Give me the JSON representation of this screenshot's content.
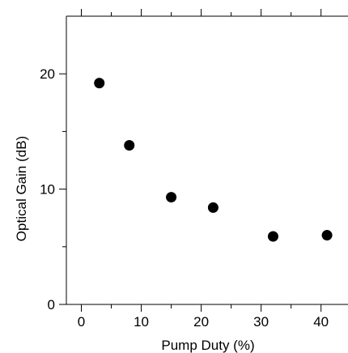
{
  "chart_data": {
    "type": "scatter",
    "title": "",
    "xlabel": "Pump Duty (%)",
    "ylabel": "Optical Gain (dB)",
    "xlim": [
      -2.5,
      44.5
    ],
    "ylim": [
      0,
      25
    ],
    "xticks_major": [
      0,
      10,
      20,
      30,
      40
    ],
    "xticks_major_labels": [
      "0",
      "10",
      "20",
      "30",
      "40"
    ],
    "xticks_minor": [
      5,
      15,
      25,
      35
    ],
    "yticks_major": [
      0,
      10,
      20
    ],
    "yticks_major_labels": [
      "0",
      "10",
      "20"
    ],
    "yticks_minor": [
      5,
      15
    ],
    "top_ticks": [
      0,
      5,
      10,
      15,
      20,
      25,
      30,
      35,
      40
    ],
    "grid": false,
    "legend": "none",
    "marker_color": "#000000",
    "points": [
      {
        "x": 3,
        "y": 19.2
      },
      {
        "x": 8,
        "y": 13.8
      },
      {
        "x": 15,
        "y": 9.3
      },
      {
        "x": 22,
        "y": 8.4
      },
      {
        "x": 32,
        "y": 5.9
      },
      {
        "x": 41,
        "y": 6.0
      }
    ]
  }
}
